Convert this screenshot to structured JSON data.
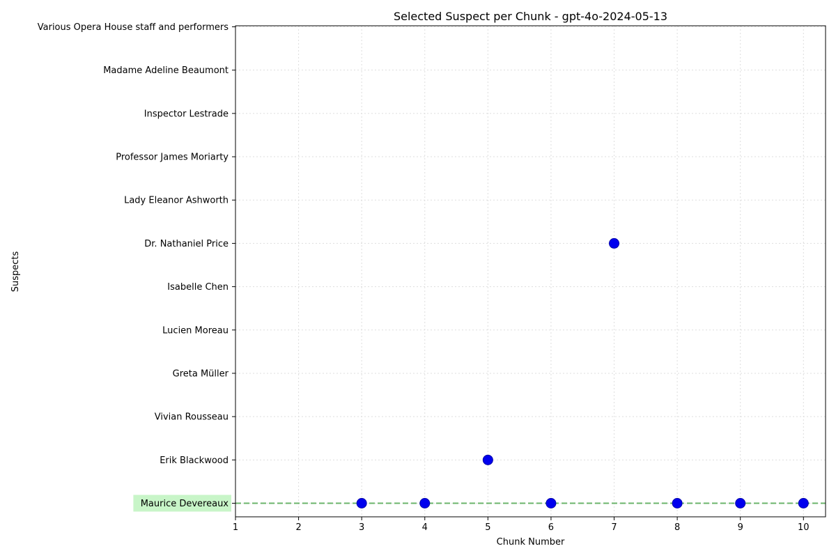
{
  "chart_data": {
    "type": "scatter",
    "title": "Selected Suspect per Chunk - gpt-4o-2024-05-13",
    "xlabel": "Chunk Number",
    "ylabel": "Suspects",
    "x_ticks": [
      1,
      2,
      3,
      4,
      5,
      6,
      7,
      8,
      9,
      10
    ],
    "xlim": [
      1,
      10.35
    ],
    "categories": [
      "Maurice Devereaux",
      "Erik Blackwood",
      "Vivian Rousseau",
      "Greta Müller",
      "Lucien Moreau",
      "Isabelle Chen",
      "Dr. Nathaniel Price",
      "Lady Eleanor Ashworth",
      "Professor James Moriarty",
      "Inspector Lestrade",
      "Madame Adeline Beaumont",
      "Various Opera House staff and performers"
    ],
    "highlighted_category": "Maurice Devereaux",
    "reference_line": {
      "category": "Maurice Devereaux",
      "style": "dashed",
      "color": "#5cad5c"
    },
    "grid": true,
    "marker_color": "#0000ee",
    "highlight_color": "#c8f5c8",
    "points": [
      {
        "x": 3,
        "y": "Maurice Devereaux"
      },
      {
        "x": 4,
        "y": "Maurice Devereaux"
      },
      {
        "x": 5,
        "y": "Erik Blackwood"
      },
      {
        "x": 6,
        "y": "Maurice Devereaux"
      },
      {
        "x": 7,
        "y": "Dr. Nathaniel Price"
      },
      {
        "x": 8,
        "y": "Maurice Devereaux"
      },
      {
        "x": 9,
        "y": "Maurice Devereaux"
      },
      {
        "x": 10,
        "y": "Maurice Devereaux"
      }
    ]
  }
}
